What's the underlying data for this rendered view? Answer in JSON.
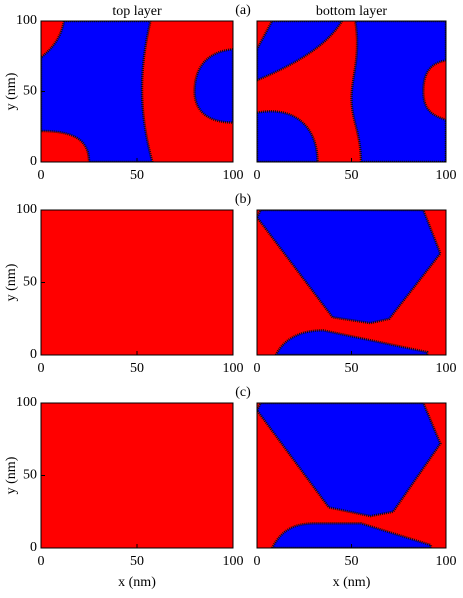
{
  "chart_data": [
    {
      "type": "domain-map",
      "title": "top layer",
      "annotation": "(a)",
      "ylabel": "y (nm)",
      "xlim": [
        0,
        100
      ],
      "ylim": [
        0,
        100
      ],
      "xticks": [
        0,
        50,
        100
      ],
      "yticks": [
        0,
        50,
        100
      ]
    },
    {
      "type": "domain-map",
      "title": "bottom layer",
      "xlim": [
        0,
        100
      ],
      "ylim": [
        0,
        100
      ],
      "xticks": [
        0,
        50,
        100
      ]
    },
    {
      "type": "domain-map",
      "annotation": "(b)",
      "ylabel": "y (nm)",
      "xlim": [
        0,
        100
      ],
      "ylim": [
        0,
        100
      ],
      "xticks": [
        0,
        50,
        100
      ],
      "yticks": [
        0,
        50,
        100
      ]
    },
    {
      "type": "domain-map",
      "xlim": [
        0,
        100
      ],
      "ylim": [
        0,
        100
      ],
      "xticks": [
        0,
        50,
        100
      ]
    },
    {
      "type": "domain-map",
      "annotation": "(c)",
      "ylabel": "y (nm)",
      "xlabel": "x (nm)",
      "xlim": [
        0,
        100
      ],
      "ylim": [
        0,
        100
      ],
      "xticks": [
        0,
        50,
        100
      ],
      "yticks": [
        0,
        50,
        100
      ]
    },
    {
      "type": "domain-map",
      "xlabel": "x (nm)",
      "xlim": [
        0,
        100
      ],
      "ylim": [
        0,
        100
      ],
      "xticks": [
        0,
        50,
        100
      ]
    }
  ]
}
